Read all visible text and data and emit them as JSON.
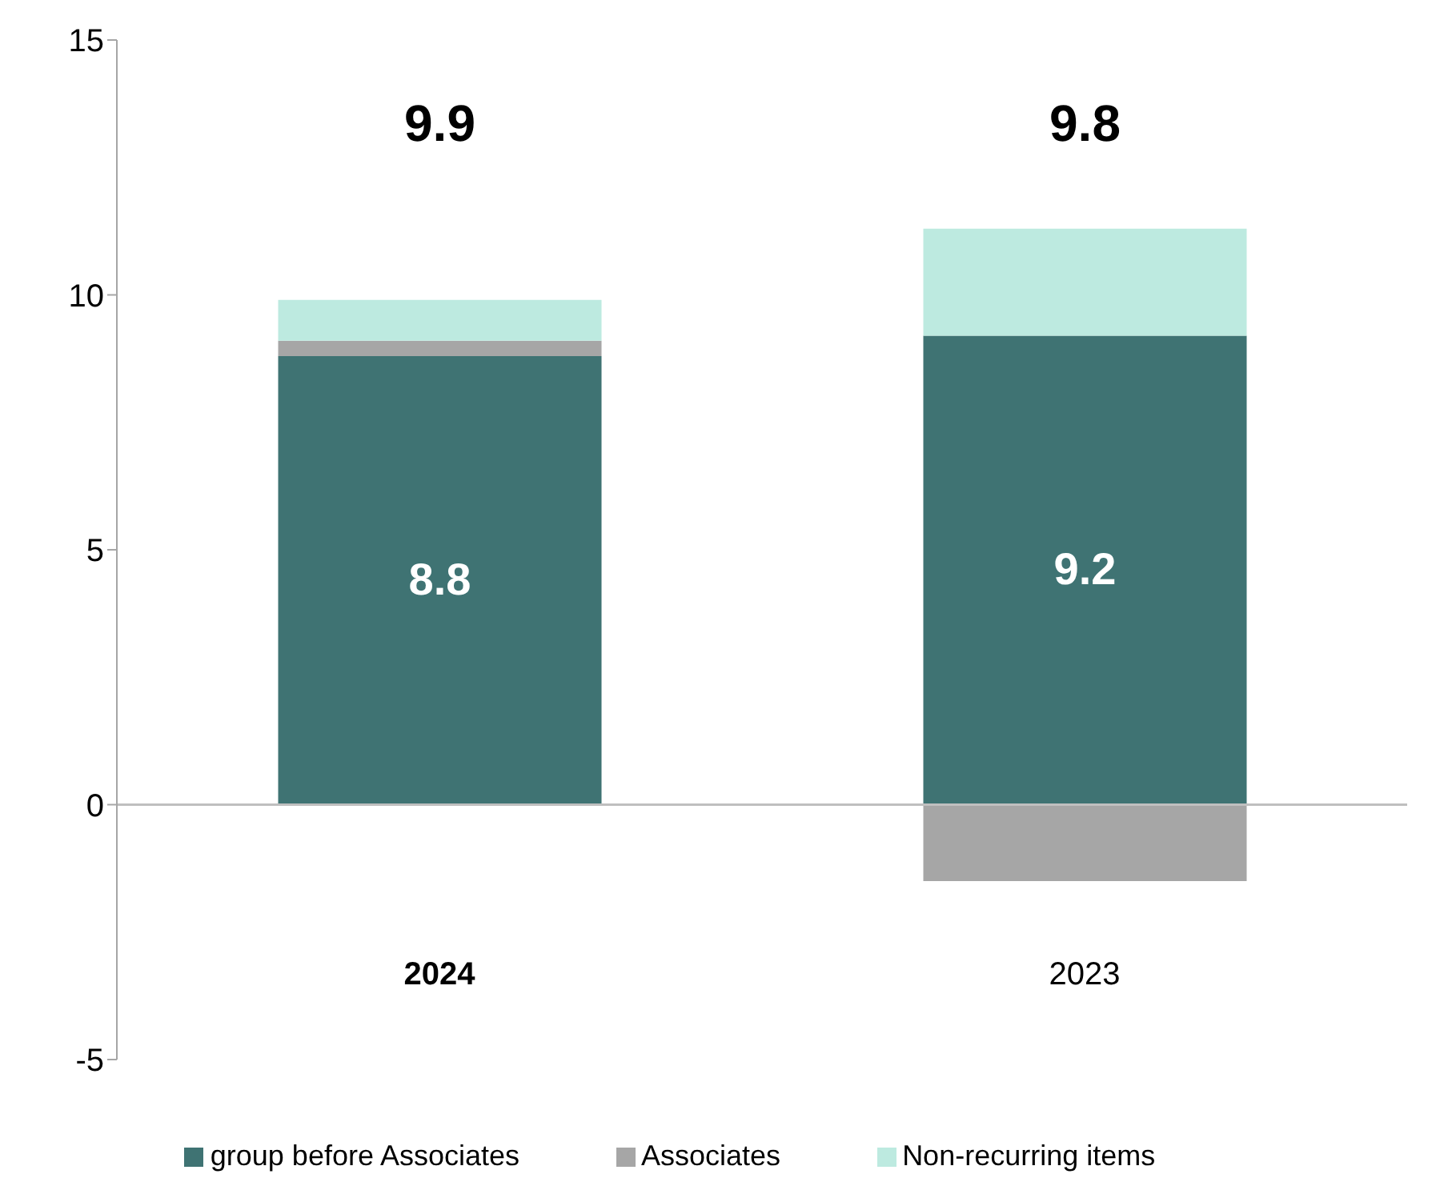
{
  "chart_data": {
    "type": "bar",
    "stacked": true,
    "categories": [
      "2024",
      "2023"
    ],
    "series": [
      {
        "name": "group before Associates",
        "color": "#3f7373",
        "values": [
          8.8,
          9.2
        ],
        "value_labels": [
          "8.8",
          "9.2"
        ]
      },
      {
        "name": "Associates",
        "color": "#a6a6a6",
        "values": [
          0.3,
          -1.5
        ]
      },
      {
        "name": "Non-recurring items",
        "color": "#bdeae0",
        "values": [
          0.8,
          2.1
        ]
      }
    ],
    "totals": [
      "9.9",
      "9.8"
    ],
    "ref_lines": [
      {
        "axis": "y",
        "value": 0,
        "color": "#bfbfbf"
      }
    ],
    "ylim": [
      -5,
      15
    ],
    "yticks": [
      -5,
      0,
      5,
      10,
      15
    ],
    "legend": "bottom"
  }
}
